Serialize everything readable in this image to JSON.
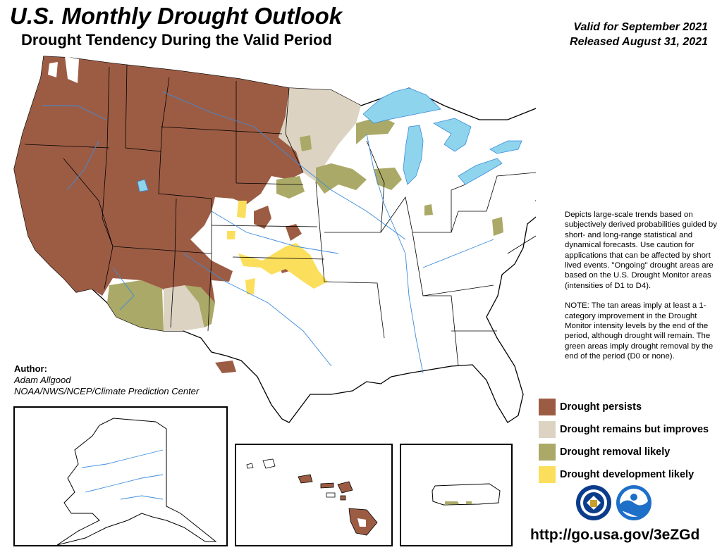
{
  "header": {
    "title": "U.S. Monthly Drought Outlook",
    "subtitle": "Drought Tendency During the Valid Period",
    "valid_for": "Valid for September 2021",
    "released": "Released August 31, 2021"
  },
  "description": {
    "paragraph1": "Depicts large-scale trends based on subjectively derived probabilities guided by short- and long-range statistical and dynamical forecasts. Use caution for applications that can be affected by short lived events. \"Ongoing\" drought areas are based on the U.S. Drought Monitor areas (intensities of D1 to D4).",
    "paragraph2": "NOTE: The tan areas imply at least a 1-category improvement in the Drought Monitor intensity levels by the end of the period, although drought will remain. The green areas imply drought removal by the end of the period (D0 or none)."
  },
  "author": {
    "label": "Author:",
    "name": "Adam Allgood",
    "organization": "NOAA/NWS/NCEP/Climate Prediction Center"
  },
  "legend": {
    "items": [
      {
        "label": "Drought persists",
        "color": "#9c5c44"
      },
      {
        "label": "Drought remains but improves",
        "color": "#ddd3c2"
      },
      {
        "label": "Drought removal likely",
        "color": "#aba967"
      },
      {
        "label": "Drought development likely",
        "color": "#fbdf5c"
      }
    ]
  },
  "footer": {
    "url": "http://go.usa.gov/3eZGd"
  },
  "colors": {
    "persists": "#9c5c44",
    "improves": "#ddd3c2",
    "removal": "#aba967",
    "development": "#fbdf5c",
    "water": "#8ed4ec",
    "rivers": "#3c8cdc"
  },
  "icons": {
    "nws_logo": "nws-logo-icon",
    "noaa_logo": "noaa-logo-icon"
  }
}
